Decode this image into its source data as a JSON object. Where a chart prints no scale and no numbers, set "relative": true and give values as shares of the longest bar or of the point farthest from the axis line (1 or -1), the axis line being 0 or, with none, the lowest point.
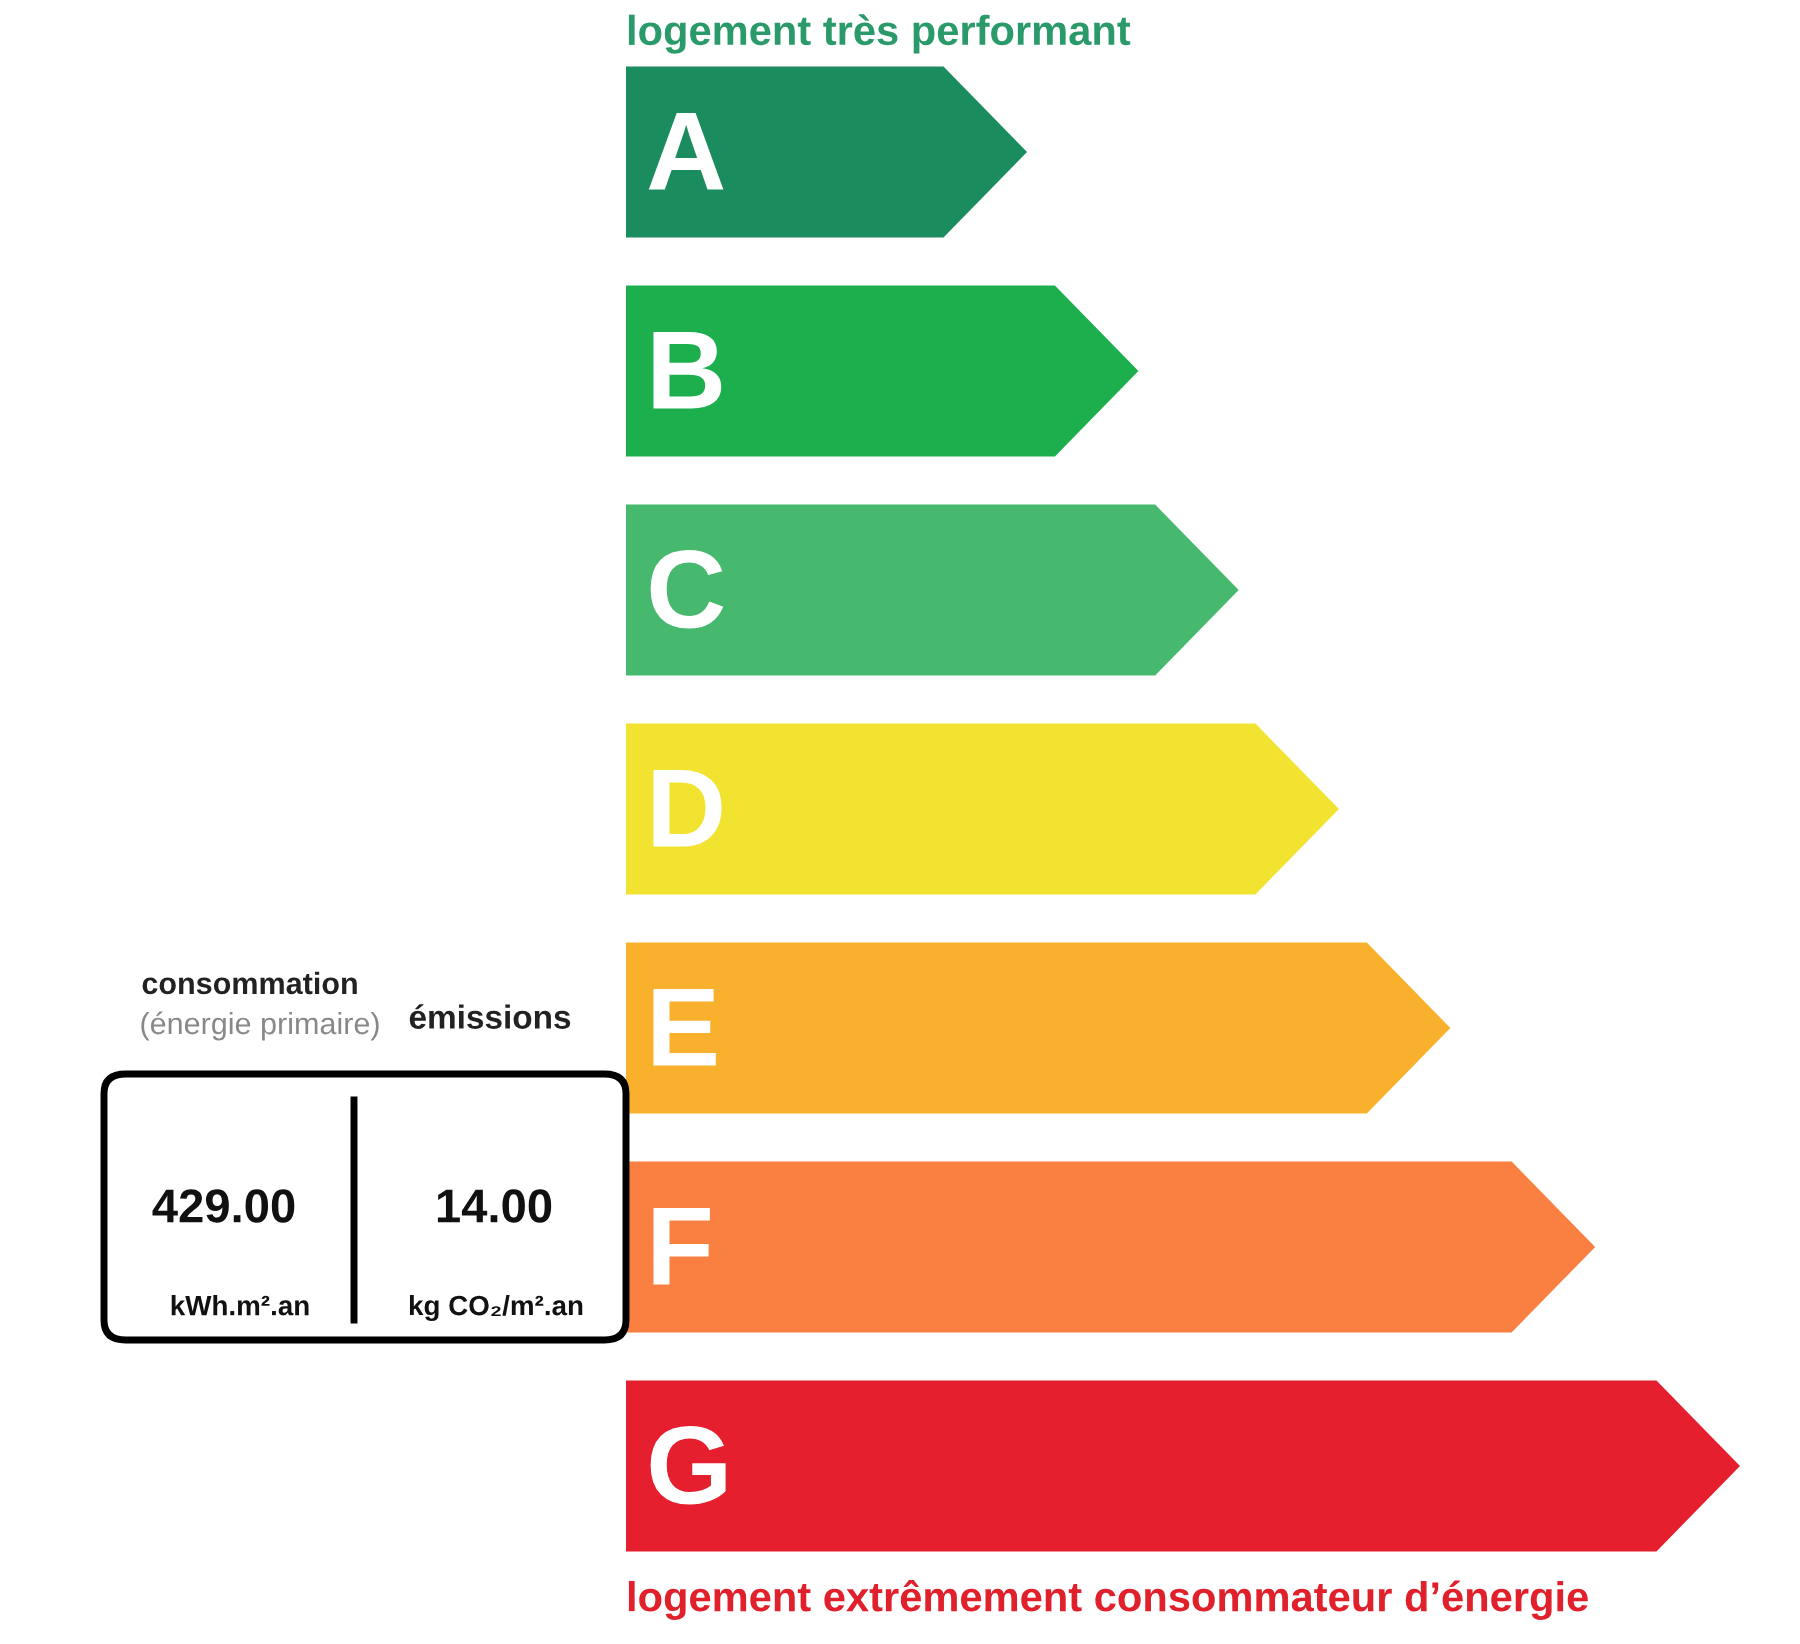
{
  "chart_data": {
    "type": "bar",
    "orientation": "horizontal",
    "relative": true,
    "title": "logement très performant",
    "categories": [
      "A",
      "B",
      "C",
      "D",
      "E",
      "F",
      "G"
    ],
    "values": [
      0.36,
      0.46,
      0.55,
      0.64,
      0.74,
      0.87,
      1.0
    ],
    "colors": [
      "#1b8c5e",
      "#1daf4d",
      "#46b96f",
      "#f2e330",
      "#f9b12d",
      "#f98040",
      "#e61f2e"
    ],
    "annotations": [
      "logement extrêmement consommateur d’énergie",
      "consommation",
      "(énergie primaire)",
      "émissions",
      "429.00",
      "kWh.m².an",
      "14.00",
      "kg CO₂/m².an"
    ]
  }
}
